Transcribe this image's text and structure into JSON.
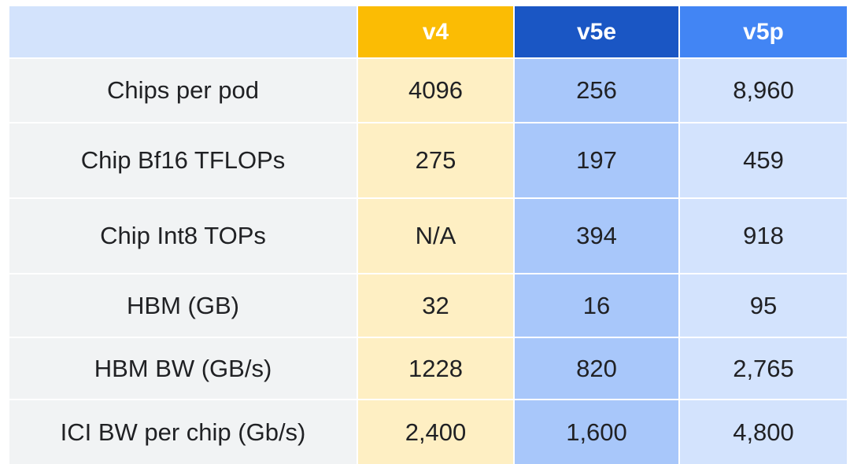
{
  "table": {
    "columns": [
      "v4",
      "v5e",
      "v5p"
    ],
    "rows": [
      {
        "label": "Chips per pod",
        "cells": [
          "4096",
          "256",
          "8,960"
        ]
      },
      {
        "label": "Chip Bf16 TFLOPs",
        "cells": [
          "275",
          "197",
          "459"
        ]
      },
      {
        "label": "Chip Int8 TOPs",
        "cells": [
          "N/A",
          "394",
          "918"
        ]
      },
      {
        "label": "HBM (GB)",
        "cells": [
          "32",
          "16",
          "95"
        ]
      },
      {
        "label": "HBM BW (GB/s)",
        "cells": [
          "1228",
          "820",
          "2,765"
        ]
      },
      {
        "label": "ICI BW per chip (Gb/s)",
        "cells": [
          "2,400",
          "1,600",
          "4,800"
        ]
      }
    ]
  }
}
